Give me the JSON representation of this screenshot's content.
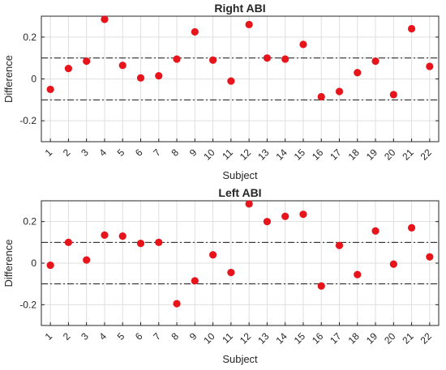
{
  "chart_data": [
    {
      "type": "scatter",
      "title": "Right ABI",
      "xlabel": "Subject",
      "ylabel": "Difference",
      "xlim": [
        0.5,
        22.5
      ],
      "ylim": [
        -0.3,
        0.3
      ],
      "categories": [
        "1",
        "2",
        "3",
        "4",
        "5",
        "6",
        "7",
        "8",
        "9",
        "10",
        "11",
        "12",
        "13",
        "14",
        "15",
        "16",
        "17",
        "18",
        "19",
        "20",
        "21",
        "22"
      ],
      "yticks": [
        "-0.2",
        "0",
        "0.2"
      ],
      "ytick_values": [
        -0.2,
        0,
        0.2
      ],
      "threshold_lines": [
        0.1,
        -0.1
      ],
      "grid": true,
      "marker_color": "#e8141c",
      "values": [
        -0.05,
        0.05,
        0.085,
        0.285,
        0.065,
        0.005,
        0.015,
        0.095,
        0.225,
        0.09,
        -0.01,
        0.26,
        0.1,
        0.095,
        0.165,
        -0.085,
        -0.06,
        0.03,
        0.085,
        -0.075,
        0.24,
        0.06
      ]
    },
    {
      "type": "scatter",
      "title": "Left ABI",
      "xlabel": "Subject",
      "ylabel": "Difference",
      "xlim": [
        0.5,
        22.5
      ],
      "ylim": [
        -0.3,
        0.3
      ],
      "categories": [
        "1",
        "2",
        "3",
        "4",
        "5",
        "6",
        "7",
        "8",
        "9",
        "10",
        "11",
        "12",
        "13",
        "14",
        "15",
        "16",
        "17",
        "18",
        "19",
        "20",
        "21",
        "22"
      ],
      "yticks": [
        "-0.2",
        "0",
        "0.2"
      ],
      "ytick_values": [
        -0.2,
        0,
        0.2
      ],
      "threshold_lines": [
        0.1,
        -0.1
      ],
      "grid": true,
      "marker_color": "#e8141c",
      "values": [
        -0.01,
        0.1,
        0.015,
        0.135,
        0.13,
        0.095,
        0.1,
        -0.195,
        -0.085,
        0.04,
        -0.045,
        0.285,
        0.2,
        0.225,
        0.235,
        -0.11,
        0.085,
        -0.055,
        0.155,
        -0.005,
        0.17,
        0.03
      ]
    }
  ]
}
